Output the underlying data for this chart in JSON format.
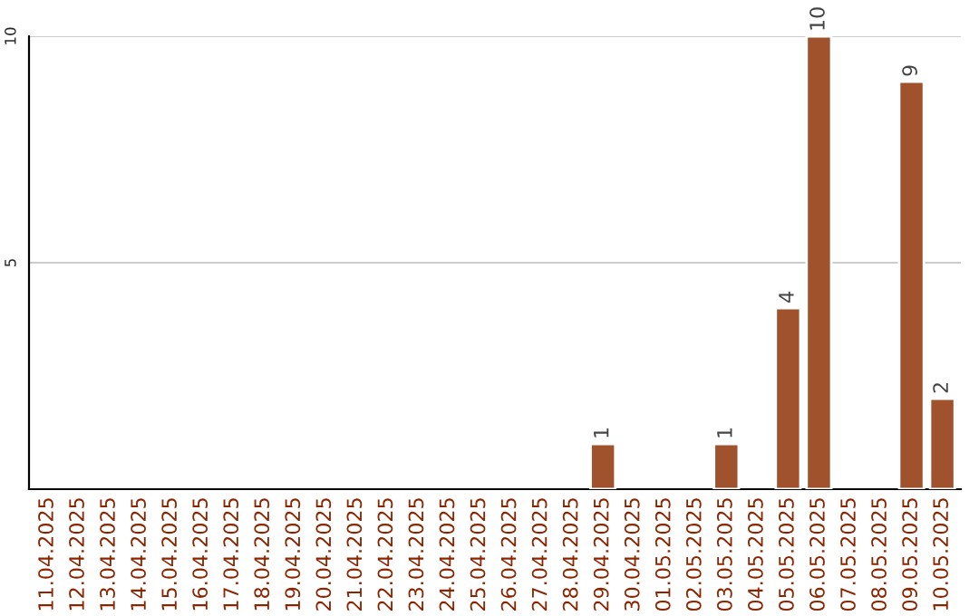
{
  "chart_data": {
    "type": "bar",
    "categories": [
      "11.04.2025",
      "12.04.2025",
      "13.04.2025",
      "14.04.2025",
      "15.04.2025",
      "16.04.2025",
      "17.04.2025",
      "18.04.2025",
      "19.04.2025",
      "20.04.2025",
      "21.04.2025",
      "22.04.2025",
      "23.04.2025",
      "24.04.2025",
      "25.04.2025",
      "26.04.2025",
      "27.04.2025",
      "28.04.2025",
      "29.04.2025",
      "30.04.2025",
      "01.05.2025",
      "02.05.2025",
      "03.05.2025",
      "04.05.2025",
      "05.05.2025",
      "06.05.2025",
      "07.05.2025",
      "08.05.2025",
      "09.05.2025",
      "10.05.2025"
    ],
    "values": [
      null,
      null,
      null,
      null,
      null,
      null,
      null,
      null,
      null,
      null,
      null,
      null,
      null,
      null,
      null,
      null,
      null,
      null,
      1,
      null,
      null,
      null,
      1,
      null,
      4,
      10,
      null,
      null,
      9,
      2
    ],
    "color": "#a0522d",
    "ylim": [
      0,
      10
    ],
    "yticks": [
      5,
      10
    ],
    "grid": "y",
    "data_labels": true
  }
}
